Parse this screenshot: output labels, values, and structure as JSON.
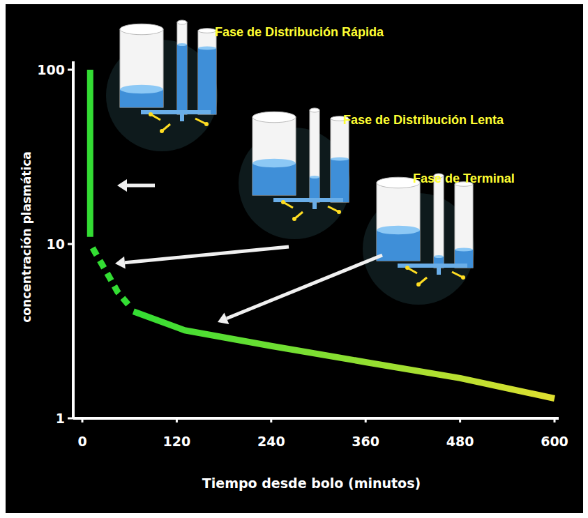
{
  "chart_data": {
    "type": "line",
    "xlabel": "Tiempo desde bolo (minutos)",
    "ylabel": "concentración plasmática",
    "xlim": [
      0,
      600
    ],
    "xticks": [
      0,
      120,
      240,
      360,
      480,
      600
    ],
    "ylim": [
      1,
      100
    ],
    "yticks": [
      1,
      10,
      100
    ],
    "log": "y",
    "grid": false,
    "annotations": [
      {
        "text": "Fase de Distribución Rápida",
        "color": "#ffff33"
      },
      {
        "text": "Fase de Distribución Lenta",
        "color": "#ffff33"
      },
      {
        "text": "Fase de Terminal",
        "color": "#ffff33"
      }
    ],
    "series": [
      {
        "x": [
          10,
          10
        ],
        "values": [
          100,
          11
        ],
        "color": "#33dd33",
        "line_style": "solid"
      },
      {
        "x": [
          13,
          30,
          45,
          62
        ],
        "values": [
          9.5,
          7,
          5.3,
          4.3
        ],
        "color": "#33dd33",
        "line_style": "dashed"
      },
      {
        "x": [
          65,
          130,
          240,
          360,
          480,
          600
        ],
        "values": [
          4.1,
          3.2,
          2.6,
          2.1,
          1.7,
          1.3
        ],
        "color": "#33dd33",
        "line_style": "solid"
      }
    ]
  }
}
